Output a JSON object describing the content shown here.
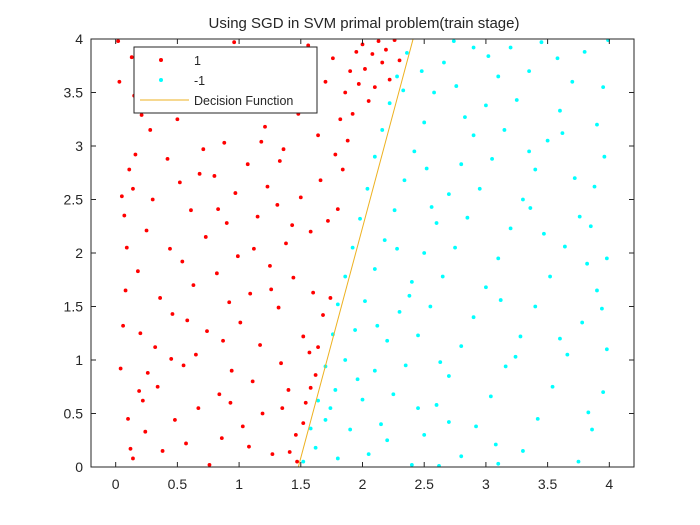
{
  "chart_data": {
    "type": "scatter",
    "title": "Using SGD in SVM primal problem(train stage)",
    "xlabel": "",
    "ylabel": "",
    "xlim": [
      -0.2,
      4.2
    ],
    "ylim": [
      0,
      4
    ],
    "xticks": [
      0,
      0.5,
      1,
      1.5,
      2,
      2.5,
      3,
      3.5,
      4
    ],
    "yticks": [
      0,
      0.5,
      1,
      1.5,
      2,
      2.5,
      3,
      3.5,
      4
    ],
    "grid": false,
    "legend_position": "top-left",
    "series": [
      {
        "name": "1",
        "type": "scatter",
        "color": "#ff0000",
        "points": [
          [
            0.02,
            3.98
          ],
          [
            0.03,
            3.6
          ],
          [
            0.05,
            2.53
          ],
          [
            0.07,
            2.35
          ],
          [
            0.08,
            1.65
          ],
          [
            0.06,
            1.32
          ],
          [
            0.1,
            0.45
          ],
          [
            0.12,
            0.17
          ],
          [
            0.14,
            0.08
          ],
          [
            0.13,
            3.83
          ],
          [
            0.15,
            3.47
          ],
          [
            0.11,
            2.78
          ],
          [
            0.16,
            2.92
          ],
          [
            0.09,
            2.05
          ],
          [
            0.18,
            1.83
          ],
          [
            0.2,
            1.25
          ],
          [
            0.22,
            0.62
          ],
          [
            0.24,
            0.33
          ],
          [
            0.26,
            0.88
          ],
          [
            0.28,
            3.15
          ],
          [
            0.3,
            2.5
          ],
          [
            0.25,
            2.21
          ],
          [
            0.32,
            1.12
          ],
          [
            0.34,
            0.75
          ],
          [
            0.36,
            1.58
          ],
          [
            0.38,
            0.15
          ],
          [
            0.4,
            3.72
          ],
          [
            0.42,
            2.88
          ],
          [
            0.44,
            2.04
          ],
          [
            0.46,
            1.43
          ],
          [
            0.48,
            0.44
          ],
          [
            0.5,
            3.25
          ],
          [
            0.52,
            2.66
          ],
          [
            0.54,
            1.92
          ],
          [
            0.55,
            0.95
          ],
          [
            0.57,
            0.22
          ],
          [
            0.59,
            3.9
          ],
          [
            0.61,
            2.4
          ],
          [
            0.63,
            1.7
          ],
          [
            0.65,
            1.05
          ],
          [
            0.67,
            0.55
          ],
          [
            0.69,
            3.5
          ],
          [
            0.71,
            2.97
          ],
          [
            0.73,
            2.15
          ],
          [
            0.74,
            1.27
          ],
          [
            0.76,
            0.02
          ],
          [
            0.78,
            3.64
          ],
          [
            0.8,
            2.72
          ],
          [
            0.82,
            1.81
          ],
          [
            0.84,
            0.68
          ],
          [
            0.86,
            0.27
          ],
          [
            0.88,
            3.03
          ],
          [
            0.9,
            2.28
          ],
          [
            0.92,
            1.54
          ],
          [
            0.94,
            0.9
          ],
          [
            0.96,
            3.97
          ],
          [
            0.97,
            2.56
          ],
          [
            0.99,
            1.97
          ],
          [
            1.01,
            1.35
          ],
          [
            1.03,
            0.38
          ],
          [
            1.05,
            3.4
          ],
          [
            1.07,
            2.83
          ],
          [
            1.09,
            1.62
          ],
          [
            1.11,
            0.8
          ],
          [
            1.13,
            3.8
          ],
          [
            1.15,
            2.34
          ],
          [
            1.17,
            1.14
          ],
          [
            1.19,
            0.5
          ],
          [
            1.21,
            3.18
          ],
          [
            1.23,
            2.62
          ],
          [
            1.25,
            1.88
          ],
          [
            1.27,
            0.12
          ],
          [
            1.29,
            3.56
          ],
          [
            1.31,
            2.45
          ],
          [
            1.32,
            1.49
          ],
          [
            1.34,
            0.97
          ],
          [
            1.36,
            2.97
          ],
          [
            1.38,
            2.09
          ],
          [
            1.4,
            0.72
          ],
          [
            1.42,
            3.75
          ],
          [
            1.44,
            1.77
          ],
          [
            1.46,
            0.3
          ],
          [
            1.48,
            3.3
          ],
          [
            1.5,
            2.52
          ],
          [
            1.52,
            1.22
          ],
          [
            1.54,
            0.6
          ],
          [
            1.56,
            3.94
          ],
          [
            1.58,
            2.2
          ],
          [
            1.6,
            1.63
          ],
          [
            1.62,
            0.86
          ],
          [
            1.64,
            3.1
          ],
          [
            1.66,
            2.68
          ],
          [
            1.68,
            1.42
          ],
          [
            1.7,
            3.6
          ],
          [
            1.72,
            2.3
          ],
          [
            1.74,
            1.58
          ],
          [
            1.76,
            3.82
          ],
          [
            1.78,
            2.92
          ],
          [
            1.8,
            2.41
          ],
          [
            1.82,
            3.25
          ],
          [
            1.84,
            2.78
          ],
          [
            1.86,
            3.5
          ],
          [
            1.88,
            3.05
          ],
          [
            1.9,
            3.7
          ],
          [
            1.92,
            3.3
          ],
          [
            1.95,
            3.88
          ],
          [
            1.97,
            3.58
          ],
          [
            2.0,
            3.95
          ],
          [
            2.02,
            3.72
          ],
          [
            2.05,
            3.42
          ],
          [
            2.08,
            3.86
          ],
          [
            2.1,
            3.55
          ],
          [
            2.13,
            3.98
          ],
          [
            2.16,
            3.78
          ],
          [
            2.19,
            3.9
          ],
          [
            2.22,
            3.62
          ],
          [
            2.26,
            3.99
          ],
          [
            2.3,
            3.8
          ],
          [
            0.14,
            2.6
          ],
          [
            0.35,
            3.52
          ],
          [
            0.58,
            1.37
          ],
          [
            0.83,
            2.41
          ],
          [
            1.08,
            0.19
          ],
          [
            1.33,
            2.86
          ],
          [
            1.57,
            1.07
          ],
          [
            1.47,
            0.05
          ],
          [
            1.52,
            0.41
          ],
          [
            1.58,
            0.74
          ],
          [
            1.64,
            1.12
          ],
          [
            1.41,
            0.14
          ],
          [
            1.35,
            0.55
          ],
          [
            1.26,
            1.66
          ],
          [
            1.12,
            2.04
          ],
          [
            0.93,
            0.6
          ],
          [
            0.68,
            2.74
          ],
          [
            0.45,
            1.01
          ],
          [
            0.21,
            3.29
          ],
          [
            0.04,
            0.92
          ],
          [
            0.19,
            0.71
          ],
          [
            0.62,
            3.41
          ],
          [
            0.87,
            1.18
          ],
          [
            1.18,
            3.04
          ],
          [
            1.43,
            2.26
          ]
        ]
      },
      {
        "name": "-1",
        "type": "scatter",
        "color": "#00ffff",
        "points": [
          [
            1.52,
            0.05
          ],
          [
            1.58,
            0.36
          ],
          [
            1.64,
            0.62
          ],
          [
            1.7,
            0.94
          ],
          [
            1.76,
            1.24
          ],
          [
            1.8,
            1.52
          ],
          [
            1.86,
            1.78
          ],
          [
            1.92,
            2.05
          ],
          [
            1.98,
            2.32
          ],
          [
            2.04,
            2.6
          ],
          [
            2.1,
            2.9
          ],
          [
            2.16,
            3.15
          ],
          [
            2.22,
            3.4
          ],
          [
            2.28,
            3.65
          ],
          [
            2.36,
            3.87
          ],
          [
            1.62,
            0.18
          ],
          [
            1.7,
            0.44
          ],
          [
            1.78,
            0.72
          ],
          [
            1.86,
            1.0
          ],
          [
            1.94,
            1.28
          ],
          [
            2.02,
            1.55
          ],
          [
            2.1,
            1.85
          ],
          [
            2.18,
            2.12
          ],
          [
            2.26,
            2.4
          ],
          [
            2.34,
            2.68
          ],
          [
            2.42,
            2.95
          ],
          [
            2.5,
            3.22
          ],
          [
            2.58,
            3.5
          ],
          [
            2.66,
            3.78
          ],
          [
            2.74,
            3.98
          ],
          [
            1.8,
            0.08
          ],
          [
            1.9,
            0.35
          ],
          [
            2.0,
            0.63
          ],
          [
            2.1,
            0.9
          ],
          [
            2.2,
            1.18
          ],
          [
            2.3,
            1.45
          ],
          [
            2.4,
            1.73
          ],
          [
            2.5,
            2.0
          ],
          [
            2.6,
            2.28
          ],
          [
            2.7,
            2.55
          ],
          [
            2.8,
            2.83
          ],
          [
            2.9,
            3.1
          ],
          [
            3.0,
            3.38
          ],
          [
            3.1,
            3.65
          ],
          [
            3.2,
            3.92
          ],
          [
            2.05,
            0.12
          ],
          [
            2.15,
            0.4
          ],
          [
            2.25,
            0.68
          ],
          [
            2.35,
            0.95
          ],
          [
            2.45,
            1.23
          ],
          [
            2.55,
            1.5
          ],
          [
            2.65,
            1.78
          ],
          [
            2.75,
            2.05
          ],
          [
            2.85,
            2.33
          ],
          [
            2.95,
            2.6
          ],
          [
            3.05,
            2.88
          ],
          [
            3.15,
            3.15
          ],
          [
            3.25,
            3.43
          ],
          [
            3.35,
            3.7
          ],
          [
            3.45,
            3.97
          ],
          [
            2.4,
            0.02
          ],
          [
            2.5,
            0.3
          ],
          [
            2.6,
            0.58
          ],
          [
            2.7,
            0.85
          ],
          [
            2.8,
            1.13
          ],
          [
            2.9,
            1.4
          ],
          [
            3.0,
            1.68
          ],
          [
            3.1,
            1.95
          ],
          [
            3.2,
            2.23
          ],
          [
            3.3,
            2.5
          ],
          [
            3.4,
            2.78
          ],
          [
            3.5,
            3.05
          ],
          [
            3.6,
            3.33
          ],
          [
            3.7,
            3.6
          ],
          [
            3.8,
            3.88
          ],
          [
            2.8,
            0.1
          ],
          [
            2.92,
            0.38
          ],
          [
            3.04,
            0.66
          ],
          [
            3.16,
            0.94
          ],
          [
            3.28,
            1.22
          ],
          [
            3.4,
            1.5
          ],
          [
            3.52,
            1.78
          ],
          [
            3.64,
            2.06
          ],
          [
            3.76,
            2.34
          ],
          [
            3.88,
            2.62
          ],
          [
            3.96,
            2.9
          ],
          [
            3.9,
            3.2
          ],
          [
            3.95,
            3.55
          ],
          [
            3.3,
            0.15
          ],
          [
            3.42,
            0.45
          ],
          [
            3.54,
            0.75
          ],
          [
            3.66,
            1.05
          ],
          [
            3.78,
            1.35
          ],
          [
            3.9,
            1.65
          ],
          [
            3.98,
            1.95
          ],
          [
            3.85,
            2.25
          ],
          [
            3.75,
            0.05
          ],
          [
            3.86,
            0.35
          ],
          [
            3.95,
            0.7
          ],
          [
            3.98,
            1.1
          ],
          [
            2.2,
            0.25
          ],
          [
            2.45,
            0.55
          ],
          [
            2.63,
            0.98
          ],
          [
            2.38,
            1.6
          ],
          [
            2.56,
            2.43
          ],
          [
            2.83,
            3.27
          ],
          [
            3.08,
            0.21
          ],
          [
            3.24,
            1.03
          ],
          [
            3.47,
            2.18
          ],
          [
            3.62,
            3.12
          ],
          [
            3.83,
            0.51
          ],
          [
            3.94,
            1.48
          ],
          [
            3.58,
            3.82
          ],
          [
            2.9,
            3.92
          ],
          [
            2.48,
            3.7
          ],
          [
            2.33,
            3.52
          ],
          [
            2.7,
            0.42
          ],
          [
            3.12,
            1.56
          ],
          [
            3.36,
            2.42
          ],
          [
            3.72,
            2.7
          ],
          [
            1.74,
            0.55
          ],
          [
            1.96,
            0.82
          ],
          [
            2.12,
            1.32
          ],
          [
            2.28,
            2.04
          ],
          [
            2.52,
            2.79
          ],
          [
            2.76,
            3.56
          ],
          [
            3.02,
            3.84
          ],
          [
            3.35,
            2.95
          ],
          [
            3.6,
            1.2
          ],
          [
            3.82,
            1.9
          ],
          [
            3.99,
            3.99
          ],
          [
            3.1,
            0.03
          ],
          [
            2.62,
            0.01
          ]
        ]
      },
      {
        "name": "Decision Function",
        "type": "line",
        "color": "#edb120",
        "points": [
          [
            1.48,
            0
          ],
          [
            2.41,
            4
          ]
        ]
      }
    ]
  }
}
